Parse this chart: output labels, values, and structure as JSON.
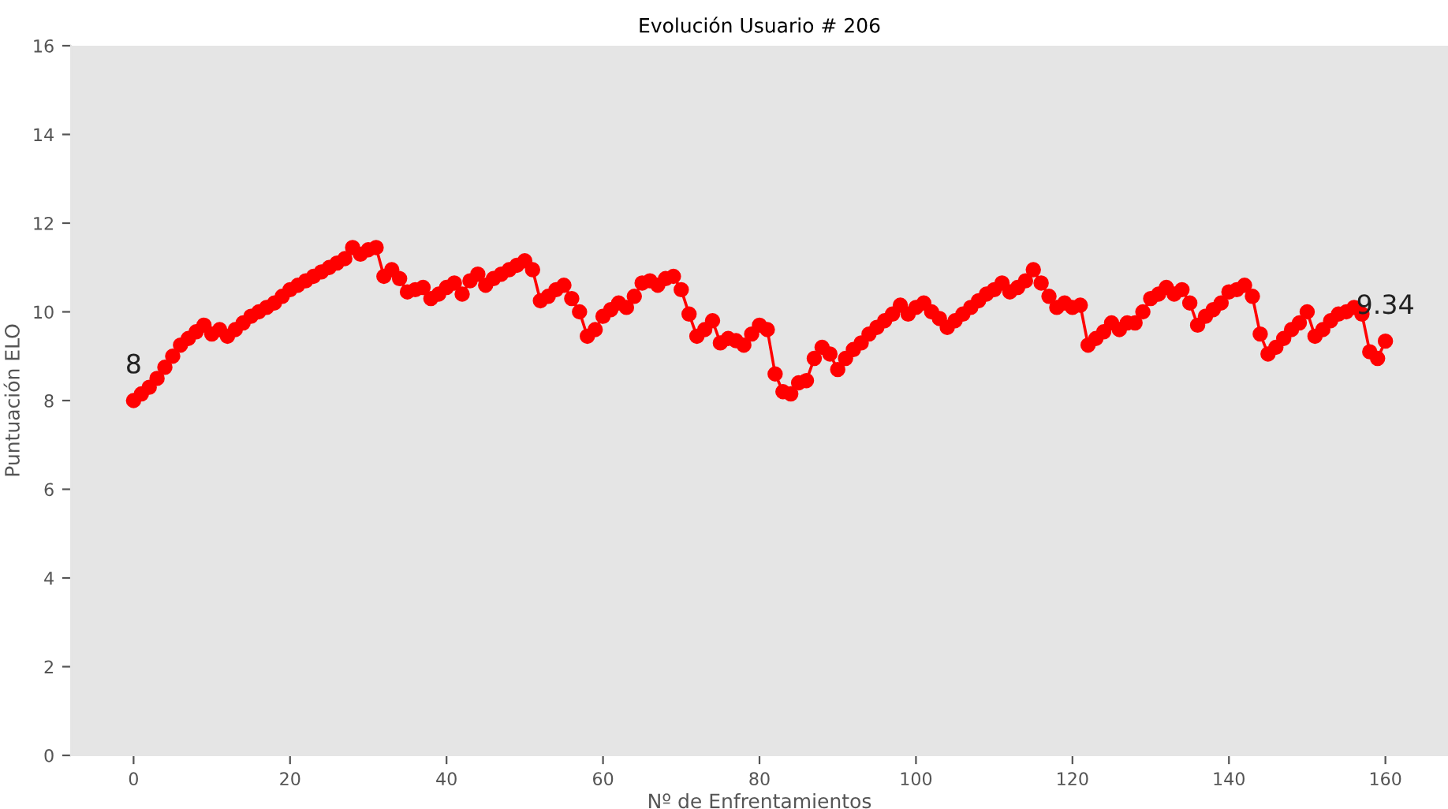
{
  "chart_data": {
    "type": "line",
    "title": "Evolución Usuario # 206",
    "xlabel": "Nº de Enfrentamientos",
    "ylabel": "Puntuación ELO",
    "x": [
      0,
      1,
      2,
      3,
      4,
      5,
      6,
      7,
      8,
      9,
      10,
      11,
      12,
      13,
      14,
      15,
      16,
      17,
      18,
      19,
      20,
      21,
      22,
      23,
      24,
      25,
      26,
      27,
      28,
      29,
      30,
      31,
      32,
      33,
      34,
      35,
      36,
      37,
      38,
      39,
      40,
      41,
      42,
      43,
      44,
      45,
      46,
      47,
      48,
      49,
      50,
      51,
      52,
      53,
      54,
      55,
      56,
      57,
      58,
      59,
      60,
      61,
      62,
      63,
      64,
      65,
      66,
      67,
      68,
      69,
      70,
      71,
      72,
      73,
      74,
      75,
      76,
      77,
      78,
      79,
      80,
      81,
      82,
      83,
      84,
      85,
      86,
      87,
      88,
      89,
      90,
      91,
      92,
      93,
      94,
      95,
      96,
      97,
      98,
      99,
      100,
      101,
      102,
      103,
      104,
      105,
      106,
      107,
      108,
      109,
      110,
      111,
      112,
      113,
      114,
      115,
      116,
      117,
      118,
      119,
      120,
      121,
      122,
      123,
      124,
      125,
      126,
      127,
      128,
      129,
      130,
      131,
      132,
      133,
      134,
      135,
      136,
      137,
      138,
      139,
      140,
      141,
      142,
      143,
      144,
      145,
      146,
      147,
      148,
      149,
      150,
      151,
      152,
      153,
      154,
      155,
      156,
      157,
      158,
      159,
      160
    ],
    "series": [
      {
        "color": "#ff0000",
        "values": [
          8.0,
          8.15,
          8.3,
          8.5,
          8.75,
          9.0,
          9.25,
          9.4,
          9.55,
          9.7,
          9.5,
          9.6,
          9.45,
          9.6,
          9.75,
          9.9,
          10.0,
          10.1,
          10.2,
          10.35,
          10.5,
          10.6,
          10.7,
          10.8,
          10.9,
          11.0,
          11.1,
          11.2,
          11.45,
          11.3,
          11.4,
          11.45,
          10.8,
          10.95,
          10.75,
          10.45,
          10.5,
          10.55,
          10.3,
          10.4,
          10.55,
          10.65,
          10.4,
          10.7,
          10.85,
          10.6,
          10.75,
          10.85,
          10.95,
          11.05,
          11.15,
          10.95,
          10.25,
          10.35,
          10.5,
          10.6,
          10.3,
          10.0,
          9.45,
          9.6,
          9.9,
          10.05,
          10.2,
          10.1,
          10.35,
          10.65,
          10.7,
          10.6,
          10.75,
          10.8,
          10.5,
          9.95,
          9.45,
          9.6,
          9.8,
          9.3,
          9.4,
          9.35,
          9.25,
          9.5,
          9.7,
          9.6,
          8.6,
          8.2,
          8.15,
          8.4,
          8.45,
          8.95,
          9.2,
          9.05,
          8.7,
          8.95,
          9.15,
          9.3,
          9.5,
          9.65,
          9.8,
          9.95,
          10.15,
          9.95,
          10.1,
          10.2,
          10.0,
          9.85,
          9.65,
          9.8,
          9.95,
          10.1,
          10.25,
          10.4,
          10.5,
          10.65,
          10.45,
          10.55,
          10.7,
          10.95,
          10.65,
          10.35,
          10.1,
          10.2,
          10.1,
          10.15,
          9.25,
          9.4,
          9.55,
          9.75,
          9.6,
          9.75,
          9.75,
          10.0,
          10.3,
          10.4,
          10.55,
          10.4,
          10.5,
          10.2,
          9.7,
          9.9,
          10.05,
          10.2,
          10.45,
          10.5,
          10.6,
          10.35,
          9.5,
          9.05,
          9.2,
          9.4,
          9.6,
          9.75,
          10.0,
          9.45,
          9.6,
          9.8,
          9.95,
          10.0,
          10.1,
          9.95,
          9.1,
          8.95,
          9.34
        ]
      }
    ],
    "annotations": [
      {
        "text": "8",
        "x": 0,
        "y": 8.0
      },
      {
        "text": "9.34",
        "x": 160,
        "y": 9.34
      }
    ],
    "marker": "circle",
    "line_style": "solid",
    "grid": false,
    "legend": false,
    "xlim": [
      -8,
      168
    ],
    "xticks": [
      0,
      20,
      40,
      60,
      80,
      100,
      120,
      140,
      160
    ],
    "ylim": [
      0,
      16
    ],
    "yticks": [
      0,
      2,
      4,
      6,
      8,
      10,
      12,
      14,
      16
    ]
  }
}
